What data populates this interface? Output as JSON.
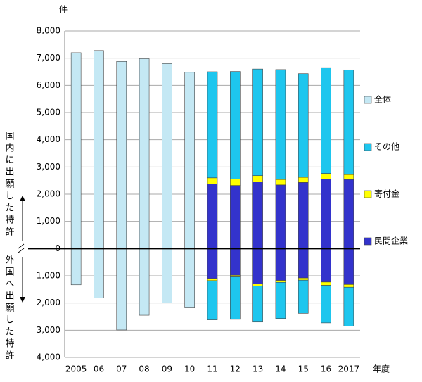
{
  "chart_data": {
    "type": "bar",
    "y_unit": "件",
    "x_label": "年度",
    "domestic_label": "国内に出願した特許",
    "foreign_label": "外国へ出願した特許",
    "categories": [
      "2005",
      "06",
      "07",
      "08",
      "09",
      "10",
      "11",
      "12",
      "13",
      "14",
      "15",
      "16",
      "2017"
    ],
    "series": [
      {
        "name": "全体",
        "color": "#c4e8f4",
        "values": [
          7200,
          7280,
          6880,
          6980,
          6800,
          6480,
          null,
          null,
          null,
          null,
          null,
          null,
          null
        ],
        "foreign_values": [
          -1330,
          -1810,
          -2990,
          -2450,
          -2000,
          -2180,
          null,
          null,
          null,
          null,
          null,
          null,
          null
        ]
      },
      {
        "name": "その他",
        "color": "#1ec6ee",
        "values": [
          null,
          null,
          null,
          null,
          null,
          null,
          3900,
          3950,
          3920,
          4040,
          3810,
          3890,
          3850
        ],
        "foreign_values": [
          null,
          null,
          null,
          null,
          null,
          null,
          -1440,
          -1560,
          -1320,
          -1330,
          -1220,
          -1380,
          -1430
        ]
      },
      {
        "name": "寄付金",
        "color": "#ffff00",
        "values": [
          null,
          null,
          null,
          null,
          null,
          null,
          230,
          240,
          230,
          200,
          190,
          210,
          180
        ],
        "foreign_values": [
          null,
          null,
          null,
          null,
          null,
          null,
          -80,
          -60,
          -80,
          -70,
          -80,
          -120,
          -100
        ]
      },
      {
        "name": "民間企業",
        "color": "#3333cc",
        "values": [
          null,
          null,
          null,
          null,
          null,
          null,
          2370,
          2320,
          2450,
          2340,
          2430,
          2550,
          2540
        ],
        "foreign_values": [
          null,
          null,
          null,
          null,
          null,
          null,
          -1100,
          -980,
          -1300,
          -1170,
          -1080,
          -1230,
          -1320
        ]
      }
    ],
    "ylim": [
      -4000,
      8000
    ],
    "yticks": [
      {
        "value": -4000,
        "label": "4,000"
      },
      {
        "value": -3000,
        "label": "3,000"
      },
      {
        "value": -2000,
        "label": "2,000"
      },
      {
        "value": -1000,
        "label": "1,000"
      },
      0,
      {
        "value": 1000,
        "label": "1,000"
      },
      {
        "value": 2000,
        "label": "2,000"
      },
      {
        "value": 3000,
        "label": "3,000"
      },
      {
        "value": 4000,
        "label": "4,000"
      },
      {
        "value": 5000,
        "label": "5,000"
      },
      {
        "value": 6000,
        "label": "6,000"
      },
      {
        "value": 7000,
        "label": "7,000"
      },
      {
        "value": 8000,
        "label": "8,000"
      }
    ],
    "grid": true,
    "legend": "right"
  }
}
